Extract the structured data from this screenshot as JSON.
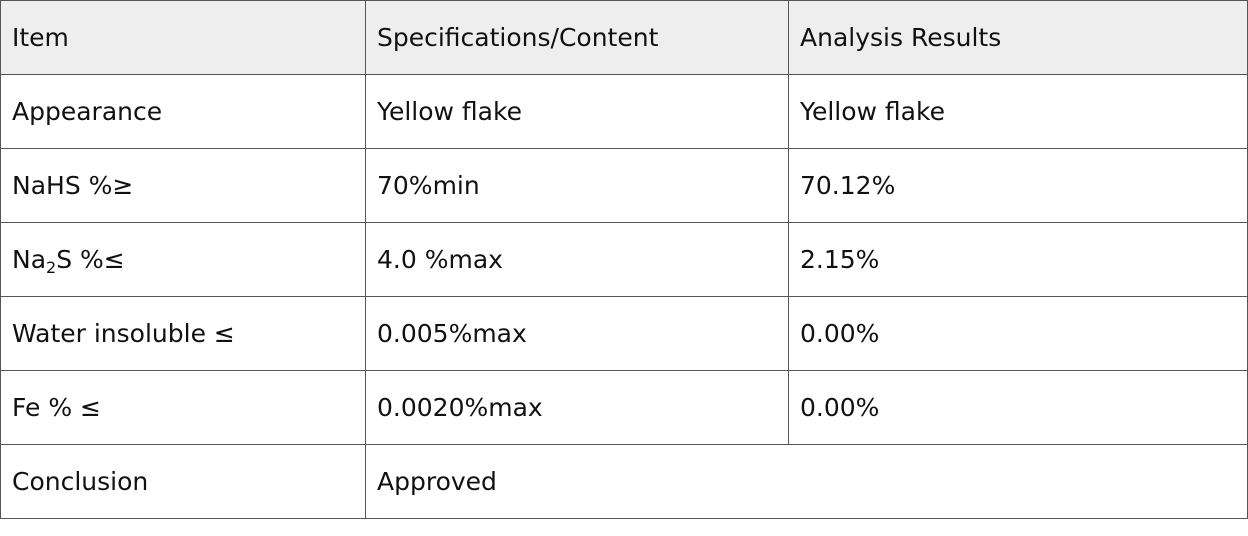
{
  "table": {
    "headers": [
      "Item",
      "Specifications/Content",
      "Analysis Results"
    ],
    "rows": [
      {
        "item": "Appearance",
        "spec": "Yellow flake",
        "result": "Yellow flake"
      },
      {
        "item": "NaHS %≥",
        "spec": "70%min",
        "result": "70.12%"
      },
      {
        "item_prefix": "Na",
        "item_sub": "2",
        "item_suffix": "S %≤",
        "spec": "4.0 %max",
        "result": "2.15%"
      },
      {
        "item": "Water insoluble ≤",
        "spec": "0.005%max",
        "result": "0.00%"
      },
      {
        "item": "Fe % ≤",
        "spec": "0.0020%max",
        "result": "0.00%"
      }
    ],
    "conclusion": {
      "label": "Conclusion",
      "value": "Approved"
    }
  }
}
